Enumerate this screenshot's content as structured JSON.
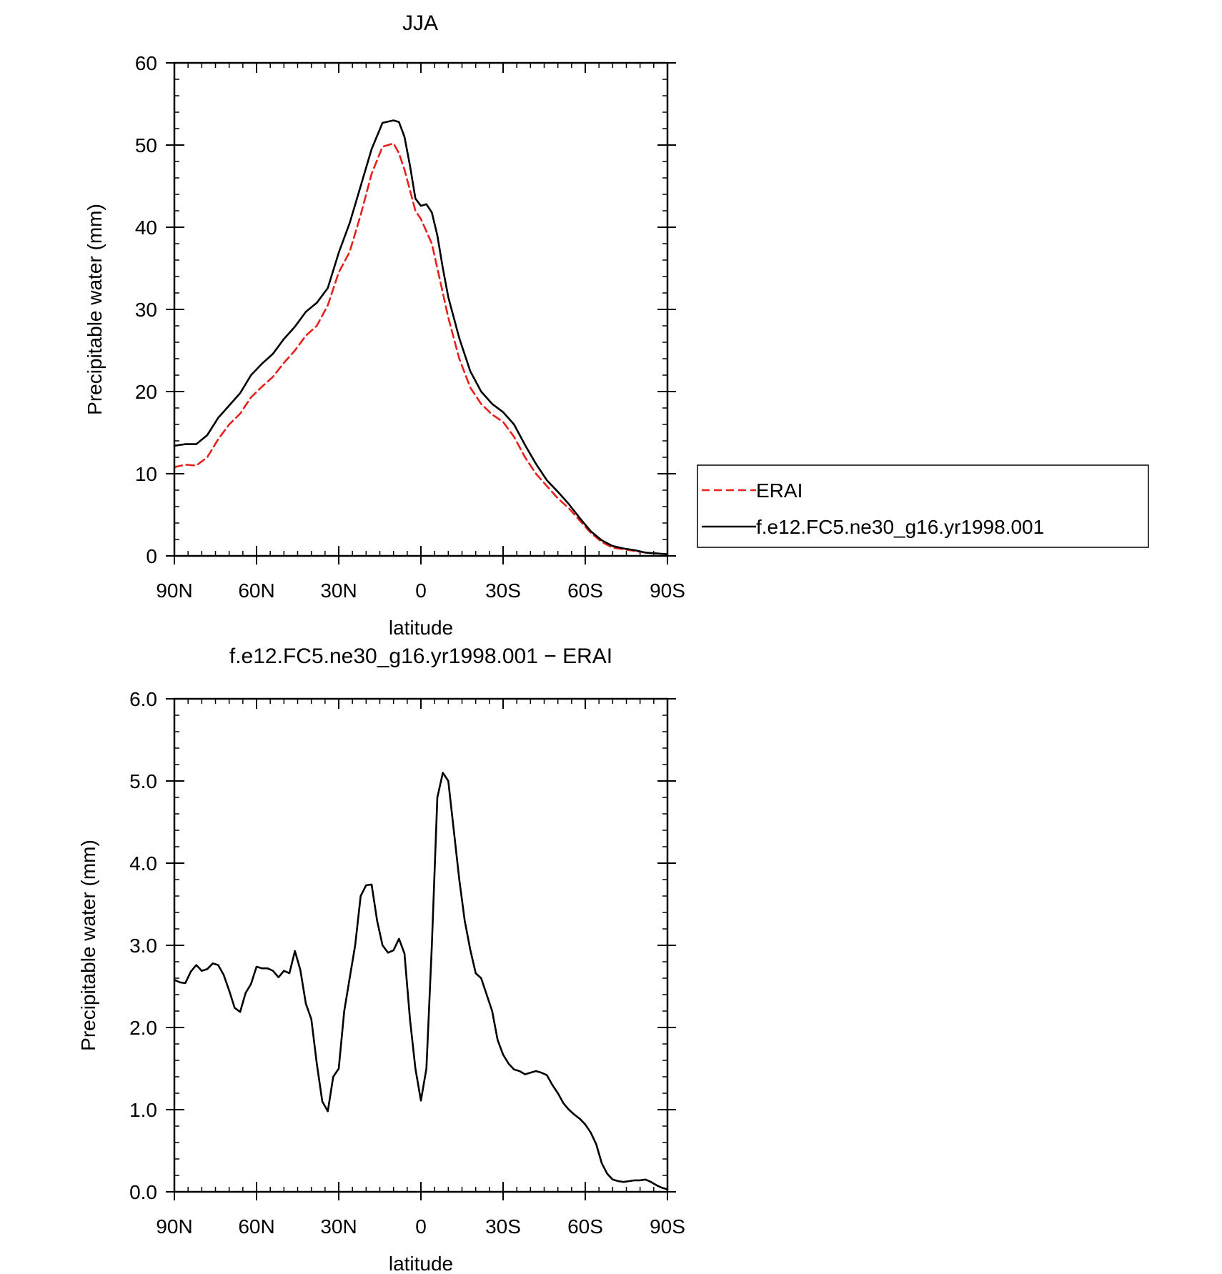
{
  "chart_data": [
    {
      "type": "line",
      "title": "JJA",
      "xlabel": "latitude",
      "ylabel": "Precipitable water (mm)",
      "xlim": [
        90,
        -90
      ],
      "ylim": [
        0,
        60
      ],
      "xticks": [
        {
          "value": 90,
          "label": "90N"
        },
        {
          "value": 60,
          "label": "60N"
        },
        {
          "value": 30,
          "label": "30N"
        },
        {
          "value": 0,
          "label": "0"
        },
        {
          "value": -30,
          "label": "30S"
        },
        {
          "value": -60,
          "label": "60S"
        },
        {
          "value": -90,
          "label": "90S"
        }
      ],
      "yticks": [
        {
          "value": 0,
          "label": "0"
        },
        {
          "value": 10,
          "label": "10"
        },
        {
          "value": 20,
          "label": "20"
        },
        {
          "value": 30,
          "label": "30"
        },
        {
          "value": 40,
          "label": "40"
        },
        {
          "value": 50,
          "label": "50"
        },
        {
          "value": 60,
          "label": "60"
        }
      ],
      "legend": "right",
      "x": [
        90,
        86,
        82,
        78,
        74,
        70,
        66,
        62,
        58,
        54,
        50,
        46,
        42,
        38,
        34,
        30,
        26,
        22,
        18,
        14,
        10,
        8,
        6,
        4,
        2,
        0,
        -2,
        -4,
        -6,
        -8,
        -10,
        -14,
        -18,
        -22,
        -26,
        -30,
        -34,
        -38,
        -42,
        -46,
        -50,
        -54,
        -58,
        -62,
        -66,
        -70,
        -74,
        -78,
        -82,
        -86,
        -90
      ],
      "series": [
        {
          "name": "ERAI",
          "color": "#e8201c",
          "dash": "dashed",
          "values": [
            10.8,
            11.1,
            11.0,
            12.0,
            14.2,
            16.0,
            17.3,
            19.3,
            20.6,
            21.8,
            23.5,
            25.0,
            26.8,
            28.0,
            30.5,
            34.5,
            37.0,
            41.5,
            46.5,
            49.8,
            50.2,
            49.0,
            47.0,
            44.5,
            42.0,
            41.0,
            39.5,
            38.0,
            35.0,
            32.0,
            29.0,
            24.0,
            20.5,
            18.5,
            17.2,
            16.3,
            14.5,
            12.0,
            10.0,
            8.5,
            7.0,
            5.8,
            4.3,
            2.8,
            1.7,
            1.0,
            0.8,
            0.6,
            0.4,
            0.3,
            0.2
          ]
        },
        {
          "name": "f.e12.FC5.ne30_g16.yr1998.001",
          "color": "#000000",
          "dash": "solid",
          "values": [
            13.4,
            13.6,
            13.6,
            14.7,
            16.8,
            18.3,
            19.8,
            22.0,
            23.4,
            24.6,
            26.4,
            27.9,
            29.7,
            30.8,
            32.6,
            36.9,
            40.5,
            45.0,
            49.5,
            52.7,
            53.0,
            52.8,
            51.0,
            47.5,
            43.5,
            42.6,
            42.8,
            41.8,
            39.0,
            35.0,
            31.5,
            26.5,
            22.5,
            20.0,
            18.5,
            17.5,
            16.0,
            13.5,
            11.2,
            9.2,
            7.8,
            6.3,
            4.6,
            3.0,
            1.9,
            1.2,
            0.9,
            0.7,
            0.4,
            0.3,
            0.2
          ]
        }
      ]
    },
    {
      "type": "line",
      "title": "f.e12.FC5.ne30_g16.yr1998.001 − ERAI",
      "xlabel": "latitude",
      "ylabel": "Precipitable water (mm)",
      "xlim": [
        90,
        -90
      ],
      "ylim": [
        0,
        6
      ],
      "xticks": [
        {
          "value": 90,
          "label": "90N"
        },
        {
          "value": 60,
          "label": "60N"
        },
        {
          "value": 30,
          "label": "30N"
        },
        {
          "value": 0,
          "label": "0"
        },
        {
          "value": -30,
          "label": "30S"
        },
        {
          "value": -60,
          "label": "60S"
        },
        {
          "value": -90,
          "label": "90S"
        }
      ],
      "yticks": [
        {
          "value": 0,
          "label": "0.0"
        },
        {
          "value": 1,
          "label": "1.0"
        },
        {
          "value": 2,
          "label": "2.0"
        },
        {
          "value": 3,
          "label": "3.0"
        },
        {
          "value": 4,
          "label": "4.0"
        },
        {
          "value": 5,
          "label": "5.0"
        },
        {
          "value": 6,
          "label": "6.0"
        }
      ],
      "x": [
        90,
        88,
        86,
        84,
        82,
        80,
        78,
        76,
        74,
        72,
        70,
        68,
        66,
        64,
        62,
        60,
        58,
        56,
        54,
        52,
        50,
        48,
        46,
        44,
        42,
        40,
        38,
        36,
        34,
        32,
        30,
        28,
        26,
        24,
        22,
        20,
        18,
        16,
        14,
        12,
        10,
        8,
        6,
        4,
        2,
        0,
        -2,
        -4,
        -6,
        -8,
        -10,
        -12,
        -14,
        -16,
        -18,
        -20,
        -22,
        -24,
        -26,
        -28,
        -30,
        -32,
        -34,
        -36,
        -38,
        -40,
        -42,
        -44,
        -46,
        -48,
        -50,
        -52,
        -54,
        -56,
        -58,
        -60,
        -62,
        -64,
        -66,
        -68,
        -70,
        -72,
        -74,
        -76,
        -78,
        -80,
        -82,
        -84,
        -86,
        -88,
        -90
      ],
      "series": [
        {
          "name": "",
          "color": "#000000",
          "dash": "solid",
          "values": [
            2.58,
            2.55,
            2.54,
            2.68,
            2.76,
            2.69,
            2.71,
            2.78,
            2.76,
            2.64,
            2.45,
            2.24,
            2.19,
            2.42,
            2.53,
            2.74,
            2.72,
            2.72,
            2.69,
            2.61,
            2.69,
            2.66,
            2.93,
            2.7,
            2.29,
            2.1,
            1.56,
            1.1,
            0.98,
            1.4,
            1.5,
            2.2,
            2.6,
            3.0,
            3.6,
            3.73,
            3.74,
            3.3,
            3.0,
            2.91,
            2.94,
            3.08,
            2.9,
            2.1,
            1.5,
            1.11,
            1.5,
            3.0,
            4.8,
            5.1,
            5.0,
            4.4,
            3.8,
            3.3,
            2.95,
            2.66,
            2.6,
            2.4,
            2.2,
            1.85,
            1.67,
            1.56,
            1.49,
            1.47,
            1.43,
            1.45,
            1.47,
            1.45,
            1.42,
            1.3,
            1.2,
            1.08,
            1.0,
            0.94,
            0.89,
            0.82,
            0.72,
            0.58,
            0.35,
            0.22,
            0.15,
            0.13,
            0.12,
            0.13,
            0.14,
            0.14,
            0.15,
            0.12,
            0.08,
            0.05,
            0.03
          ]
        }
      ]
    }
  ]
}
